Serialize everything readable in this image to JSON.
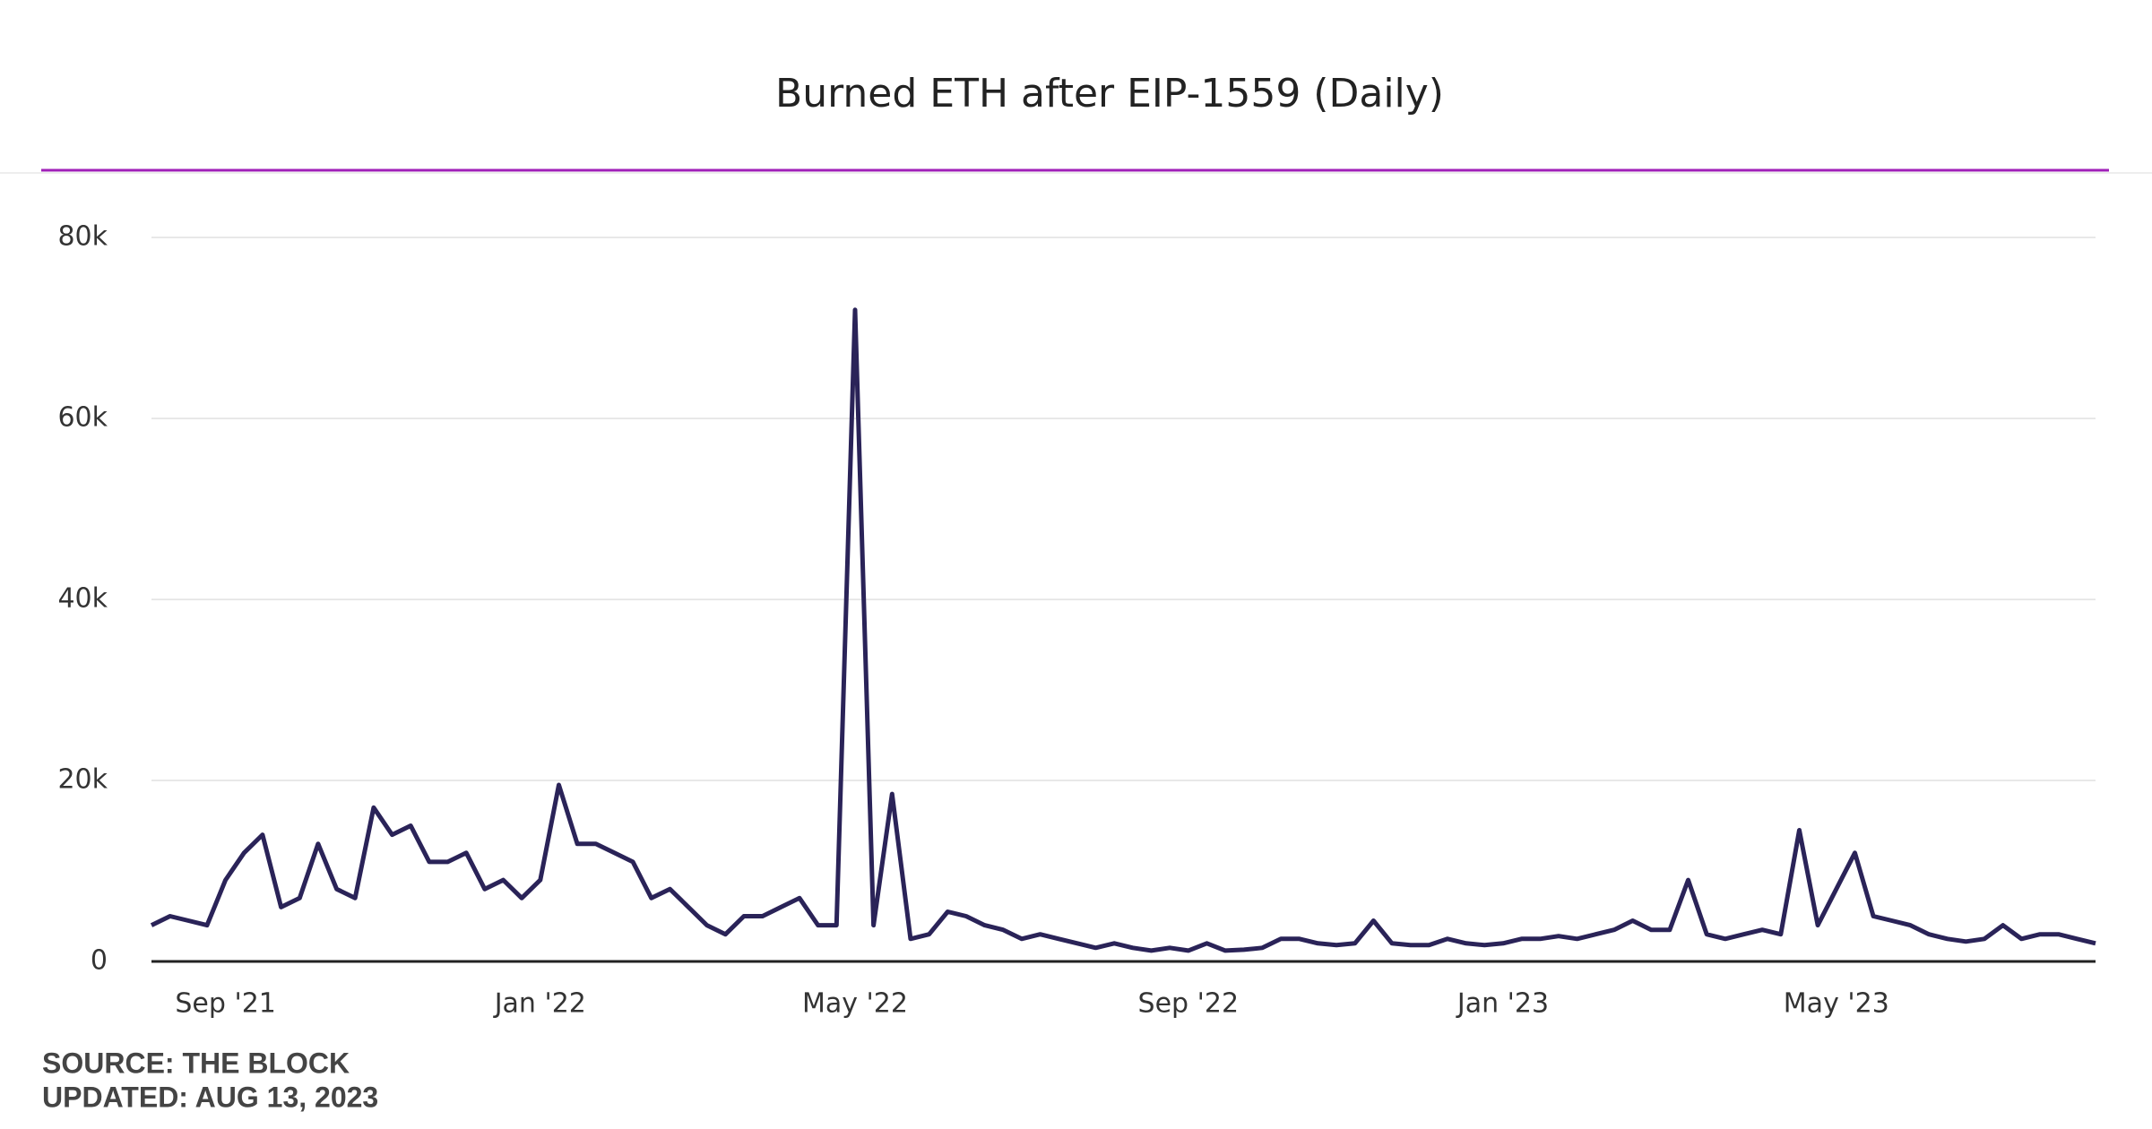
{
  "chart_data": {
    "type": "line",
    "title": "Burned ETH after EIP-1559 (Daily)",
    "categories": [
      null,
      null,
      null,
      null,
      "Sep '21",
      null,
      null,
      null,
      null,
      null,
      null,
      null,
      null,
      null,
      null,
      null,
      null,
      null,
      null,
      null,
      null,
      "Jan '22",
      null,
      null,
      null,
      null,
      null,
      null,
      null,
      null,
      null,
      null,
      null,
      null,
      null,
      null,
      null,
      null,
      "May '22",
      null,
      null,
      null,
      null,
      null,
      null,
      null,
      null,
      null,
      null,
      null,
      null,
      null,
      null,
      null,
      null,
      null,
      "Sep '22",
      null,
      null,
      null,
      null,
      null,
      null,
      null,
      null,
      null,
      null,
      null,
      null,
      null,
      null,
      null,
      null,
      "Jan '23",
      null,
      null,
      null,
      null,
      null,
      null,
      null,
      null,
      null,
      null,
      null,
      null,
      null,
      null,
      null,
      null,
      null,
      "May '23",
      null,
      null,
      null,
      null,
      null,
      null,
      null,
      null,
      null,
      null,
      null,
      null,
      null,
      null
    ],
    "values": [
      4000,
      5000,
      4500,
      4000,
      9000,
      12000,
      14000,
      6000,
      7000,
      13000,
      8000,
      7000,
      17000,
      14000,
      15000,
      11000,
      11000,
      12000,
      8000,
      9000,
      7000,
      9000,
      19500,
      13000,
      13000,
      12000,
      11000,
      7000,
      8000,
      6000,
      4000,
      3000,
      5000,
      5000,
      6000,
      7000,
      4000,
      4000,
      72000,
      4000,
      18500,
      2500,
      3000,
      5500,
      5000,
      4000,
      3500,
      2500,
      3000,
      2500,
      2000,
      1500,
      2000,
      1500,
      1200,
      1500,
      1200,
      2000,
      1200,
      1300,
      1500,
      2500,
      2500,
      2000,
      1800,
      2000,
      4500,
      2000,
      1800,
      1800,
      2500,
      2000,
      1800,
      2000,
      2500,
      2500,
      2800,
      2500,
      3000,
      3500,
      4500,
      3500,
      3500,
      9000,
      3000,
      2500,
      3000,
      3500,
      3000,
      14500,
      4000,
      8000,
      12000,
      5000,
      4500,
      4000,
      3000,
      2500,
      2200,
      2500,
      4000,
      2500,
      3000,
      3000,
      2500,
      2000
    ],
    "color": "#2a2358",
    "ylim": [
      0,
      80000
    ],
    "yticks": [
      0,
      {
        "value": 20000,
        "label": "20k"
      },
      {
        "value": 40000,
        "label": "40k"
      },
      {
        "value": 60000,
        "label": "60k"
      },
      {
        "value": 80000,
        "label": "80k"
      }
    ],
    "grid": true,
    "source": "SOURCE: THE BLOCK",
    "updated": "UPDATED: AUG 13, 2023"
  }
}
